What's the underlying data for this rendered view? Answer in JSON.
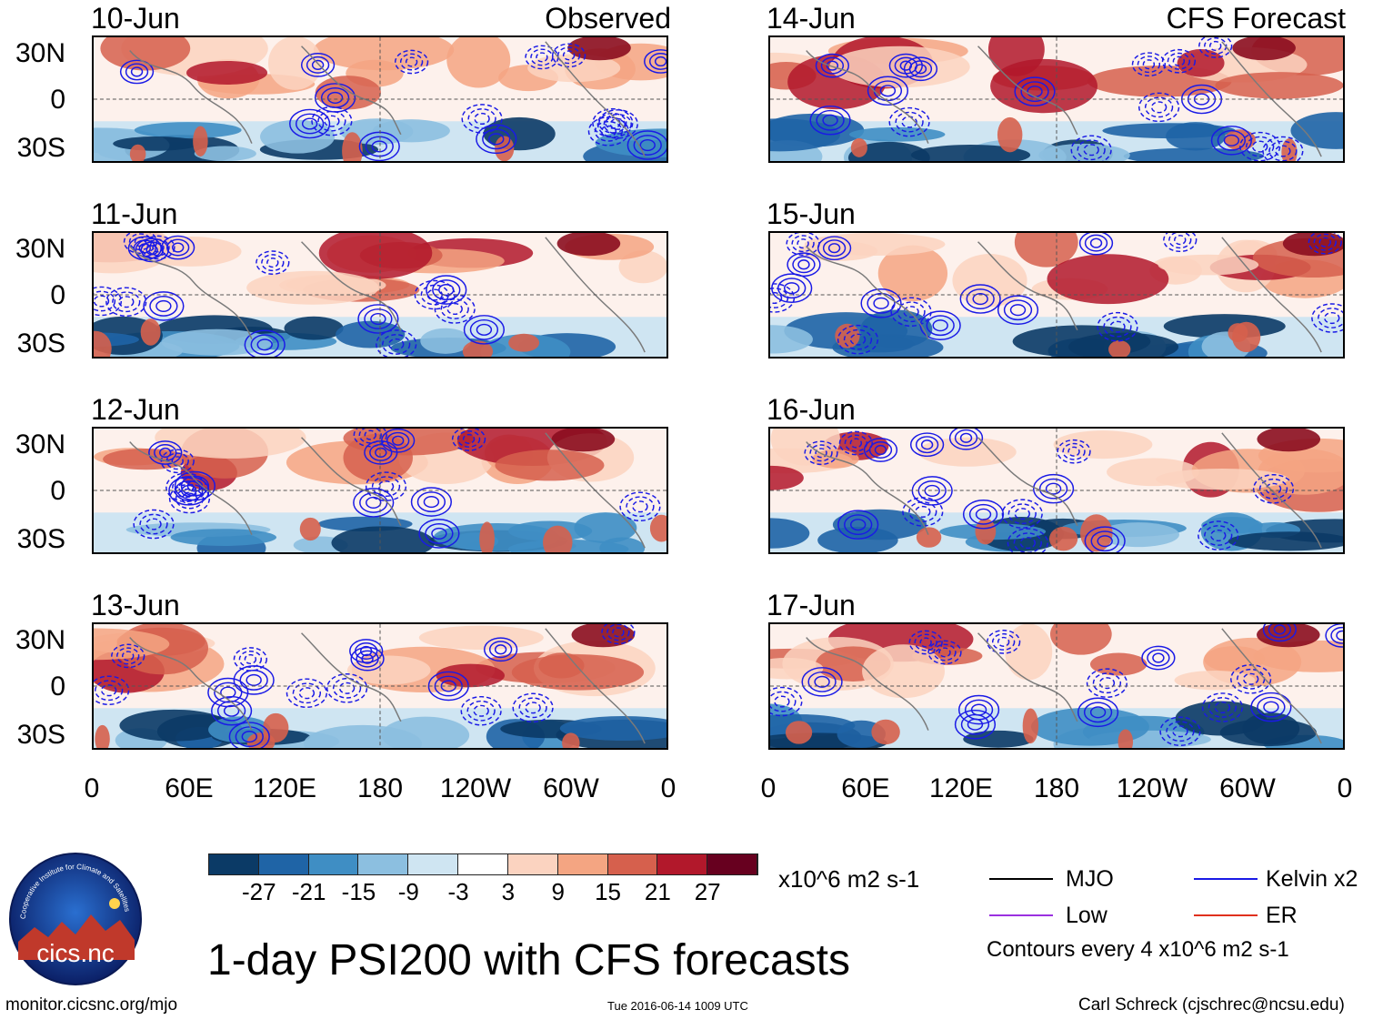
{
  "columns": {
    "left": {
      "source_label": "Observed"
    },
    "right": {
      "source_label": "CFS Forecast"
    }
  },
  "panels_left": [
    "10-Jun",
    "11-Jun",
    "12-Jun",
    "13-Jun"
  ],
  "panels_right": [
    "14-Jun",
    "15-Jun",
    "16-Jun",
    "17-Jun"
  ],
  "lat_labels": [
    "30N",
    "0",
    "30S"
  ],
  "lon_labels": [
    "0",
    "60E",
    "120E",
    "180",
    "120W",
    "60W",
    "0"
  ],
  "colorbar": {
    "units": "x10^6 m2 s-1",
    "tick_labels": [
      "-27",
      "-21",
      "-15",
      "-9",
      "-3",
      "3",
      "9",
      "15",
      "21",
      "27"
    ],
    "colors": [
      "#0b3a66",
      "#1f64a6",
      "#3f8ec4",
      "#8cbfe0",
      "#cfe5f2",
      "#ffffff",
      "#fbd3c0",
      "#f4a582",
      "#d6604d",
      "#b2182b",
      "#67001f"
    ]
  },
  "legend": {
    "items": [
      {
        "label": "MJO",
        "color": "#000000"
      },
      {
        "label": "Kelvin x2",
        "color": "#1a1ae6"
      },
      {
        "label": "Low",
        "color": "#9b30e0"
      },
      {
        "label": "ER",
        "color": "#e0301e"
      }
    ],
    "contour_note": "Contours every 4 x10^6 m2 s-1"
  },
  "logo": {
    "text": "cics.nc",
    "ring_text": "Cooperative Institute for Climate and Satellites"
  },
  "main_title": "1-day PSI200 with CFS forecasts",
  "footer": {
    "url": "monitor.cicsnc.org/mjo",
    "timestamp": "Tue 2016-06-14 1009 UTC",
    "author": "Carl Schreck (cjschrec@ncsu.edu)"
  }
}
